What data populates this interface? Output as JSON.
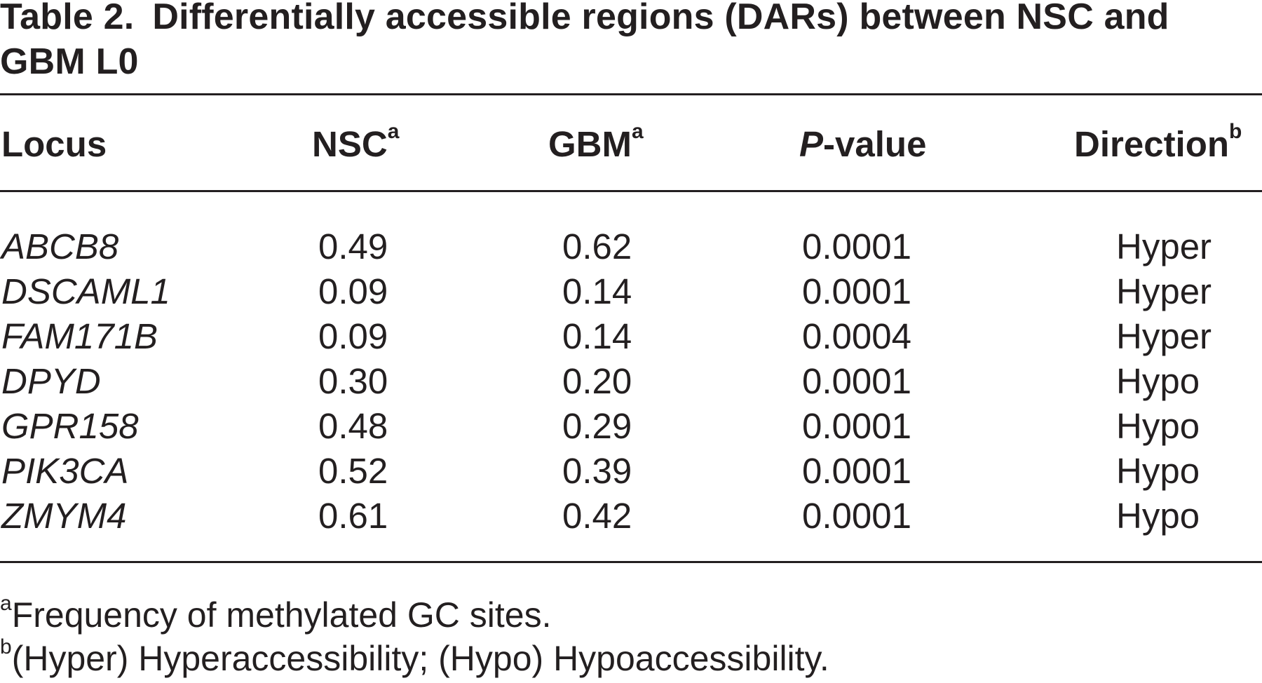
{
  "caption": {
    "label": "Table 2.",
    "text": "Differentially accessible regions (DARs) between NSC and GBM L0"
  },
  "table": {
    "headers": {
      "locus": "Locus",
      "nsc": "NSC",
      "nsc_note": "a",
      "gbm": "GBM",
      "gbm_note": "a",
      "pvalue_prefix": "P",
      "pvalue_suffix": "-value",
      "direction": "Direction",
      "direction_note": "b"
    },
    "rows": [
      {
        "locus": "ABCB8",
        "nsc": "0.49",
        "gbm": "0.62",
        "pvalue": "0.0001",
        "direction": "Hyper"
      },
      {
        "locus": "DSCAML1",
        "nsc": "0.09",
        "gbm": "0.14",
        "pvalue": "0.0001",
        "direction": "Hyper"
      },
      {
        "locus": "FAM171B",
        "nsc": "0.09",
        "gbm": "0.14",
        "pvalue": "0.0004",
        "direction": "Hyper"
      },
      {
        "locus": "DPYD",
        "nsc": "0.30",
        "gbm": "0.20",
        "pvalue": "0.0001",
        "direction": "Hypo"
      },
      {
        "locus": "GPR158",
        "nsc": "0.48",
        "gbm": "0.29",
        "pvalue": "0.0001",
        "direction": "Hypo"
      },
      {
        "locus": "PIK3CA",
        "nsc": "0.52",
        "gbm": "0.39",
        "pvalue": "0.0001",
        "direction": "Hypo"
      },
      {
        "locus": "ZMYM4",
        "nsc": "0.61",
        "gbm": "0.42",
        "pvalue": "0.0001",
        "direction": "Hypo"
      }
    ]
  },
  "footnotes": [
    {
      "mark": "a",
      "text": "Frequency of methylated GC sites."
    },
    {
      "mark": "b",
      "text": "(Hyper) Hyperaccessibility; (Hypo) Hypoaccessibility."
    }
  ]
}
